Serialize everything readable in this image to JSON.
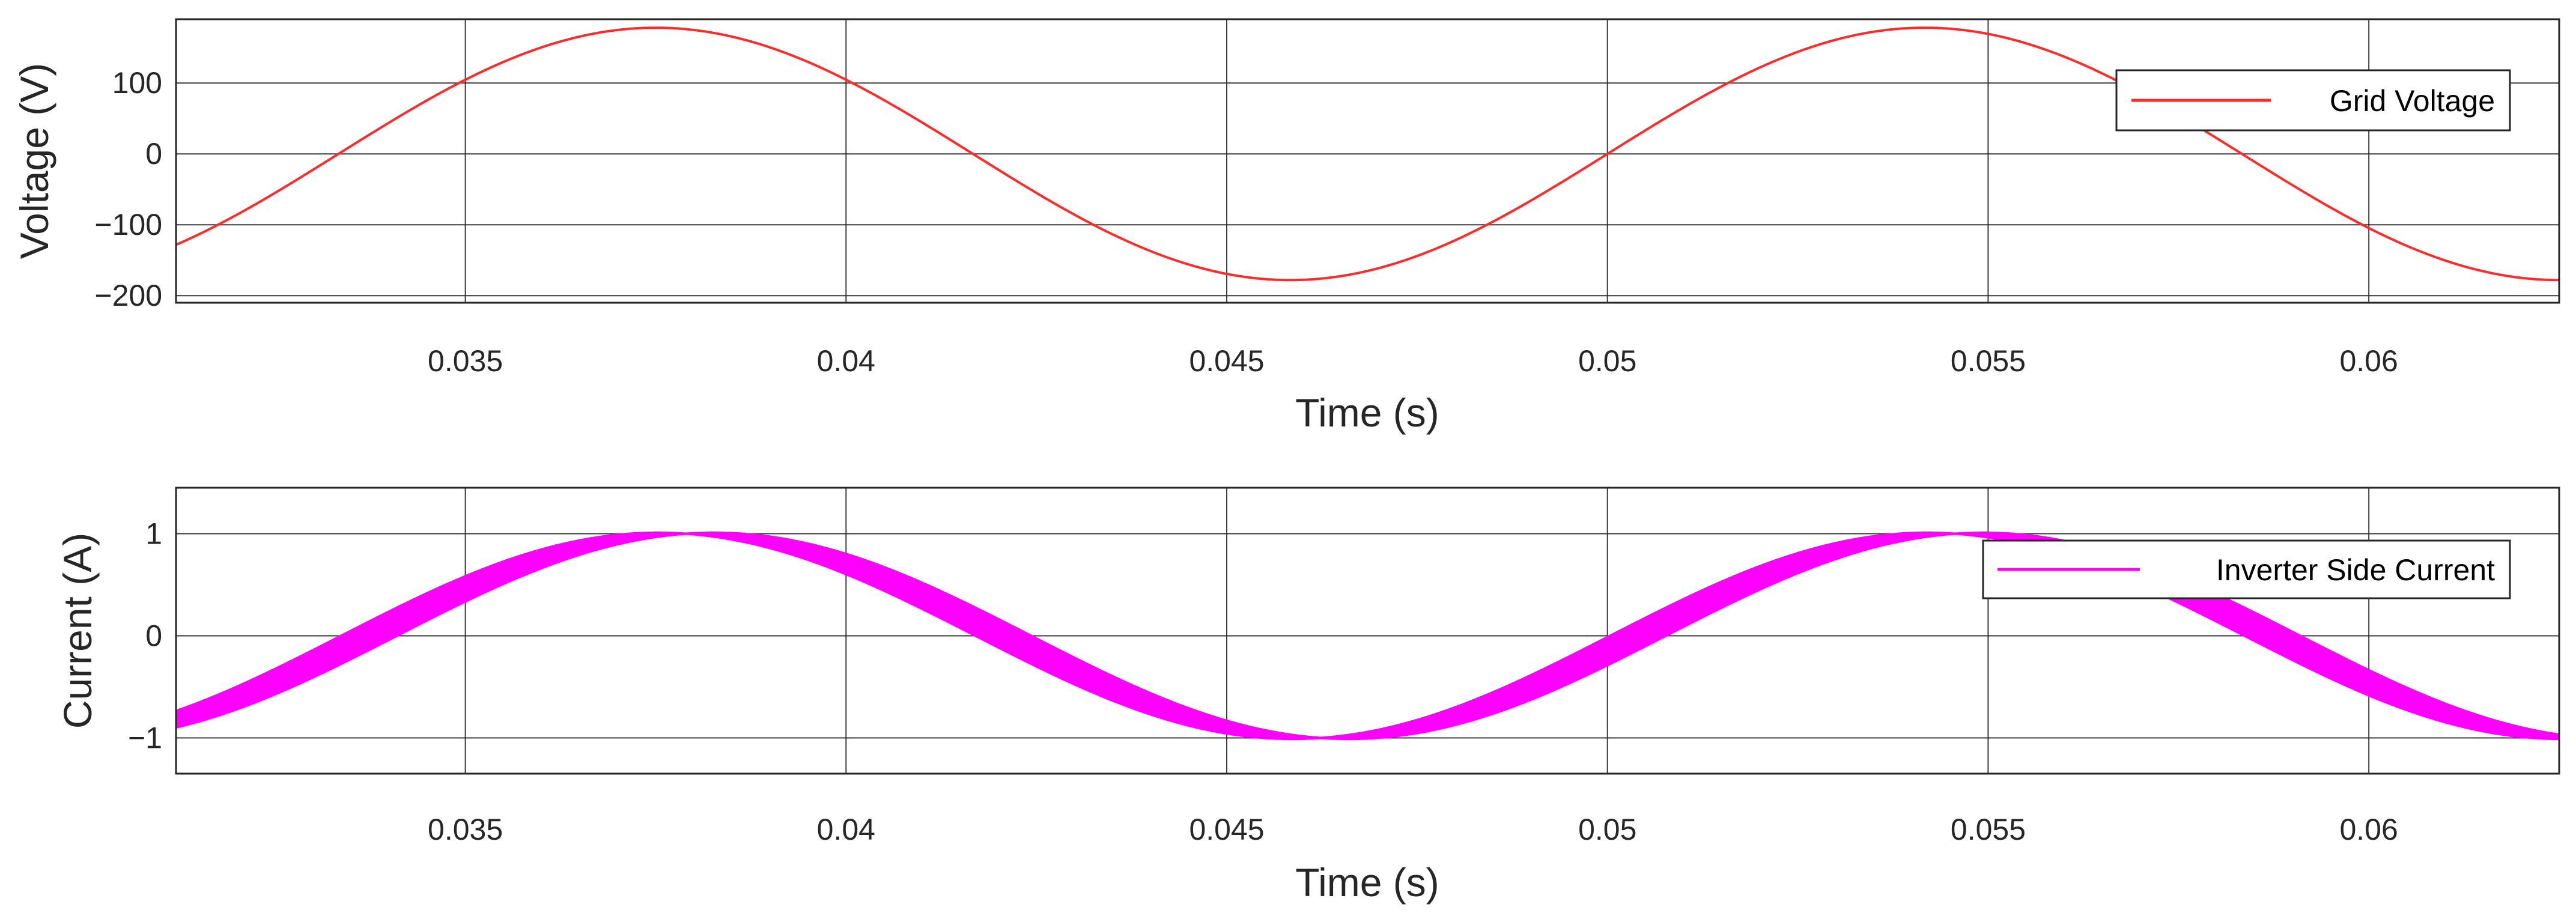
{
  "chart_data": [
    {
      "type": "line",
      "xlabel": "Time (s)",
      "ylabel": "Voltage (V)",
      "xlim": [
        0.0312,
        0.0625
      ],
      "ylim": [
        -210,
        190
      ],
      "xticks": [
        0.035,
        0.04,
        0.045,
        0.05,
        0.055,
        0.06
      ],
      "xtick_labels": [
        "0.035",
        "0.04",
        "0.045",
        "0.05",
        "0.055",
        "0.06"
      ],
      "yticks": [
        -200,
        -100,
        0,
        100
      ],
      "ytick_labels": [
        "−200",
        "−100",
        "0",
        "100"
      ],
      "grid": true,
      "legend_position": "top-right",
      "series": [
        {
          "name": "Grid Voltage",
          "color": "#ff2a2a",
          "style": "line",
          "amplitude": 178,
          "frequency_hz": 60,
          "zero_crossing_s": 0.05
        }
      ]
    },
    {
      "type": "line",
      "xlabel": "Time (s)",
      "ylabel": "Current (A)",
      "xlim": [
        0.0312,
        0.0625
      ],
      "ylim": [
        -1.35,
        1.45
      ],
      "xticks": [
        0.035,
        0.04,
        0.045,
        0.05,
        0.055,
        0.06
      ],
      "xtick_labels": [
        "0.035",
        "0.04",
        "0.045",
        "0.05",
        "0.055",
        "0.06"
      ],
      "yticks": [
        -1,
        0,
        1
      ],
      "ytick_labels": [
        "−1",
        "0",
        "1"
      ],
      "grid": true,
      "legend_position": "top-right",
      "series": [
        {
          "name": "Inverter Side Current",
          "color": "#ff00ff",
          "style": "band",
          "amplitude": 1.0,
          "frequency_hz": 60,
          "zero_crossing_s": 0.0504,
          "ripple_peak_to_peak_max": 0.28
        }
      ]
    }
  ]
}
